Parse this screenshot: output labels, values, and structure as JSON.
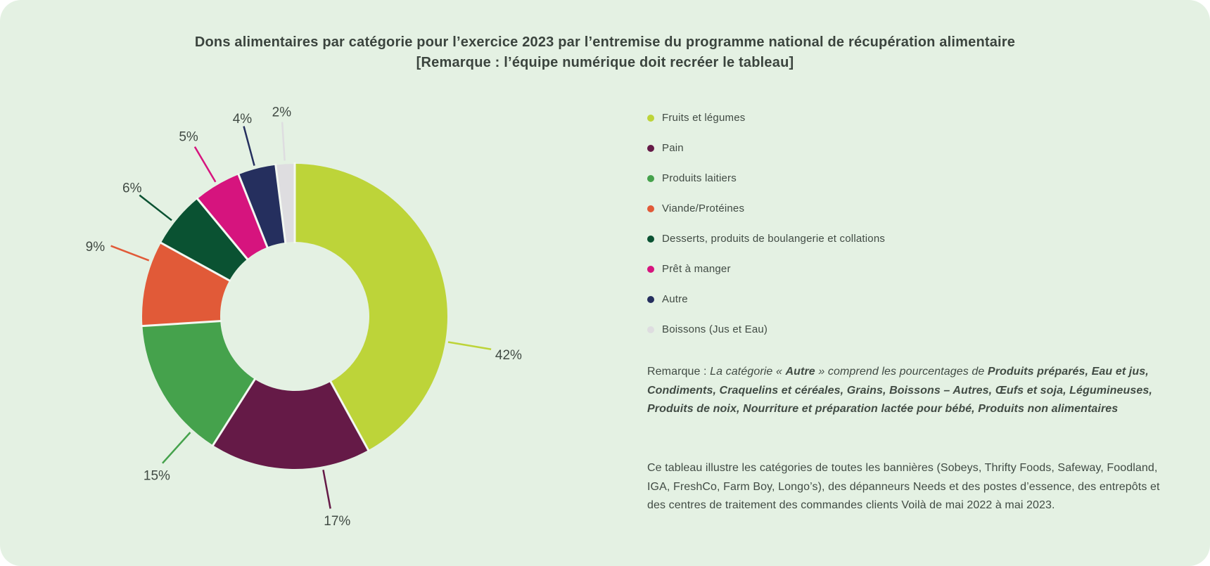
{
  "page": {
    "title_line1": "Dons alimentaires par catégorie pour l’exercice 2023 par l’entremise du programme national de récupération alimentaire",
    "title_line2": "[Remarque : l’équipe numérique doit recréer le tableau]"
  },
  "colors": {
    "background": "#e4f1e3",
    "outside_corner": "#ffffff",
    "text": "#414b44",
    "slice_gap": "#f3f8f1"
  },
  "chart_data": {
    "type": "pie",
    "subtype": "donut",
    "title": "Dons alimentaires par catégorie pour l’exercice 2023 par l’entremise du programme national de récupération alimentaire",
    "subtitle": "[Remarque : l’équipe numérique doit recréer le tableau]",
    "categories": [
      "Fruits et légumes",
      "Pain",
      "Produits laitiers",
      "Viande/Protéines",
      "Desserts, produits de boulangerie et collations",
      "Prêt à manger",
      "Autre",
      "Boissons (Jus et Eau)"
    ],
    "values": [
      42,
      17,
      15,
      9,
      6,
      5,
      4,
      2
    ],
    "labels": [
      "42%",
      "17%",
      "15%",
      "9%",
      "6%",
      "5%",
      "4%",
      "2%"
    ],
    "colors": [
      "#bdd439",
      "#651a47",
      "#45a24c",
      "#e15a38",
      "#0a5232",
      "#d6147e",
      "#252f5e",
      "#dedde0"
    ],
    "start_angle_deg": 0,
    "direction": "clockwise",
    "donut_hole_ratio": 0.49,
    "legend_position": "right",
    "grid": false
  },
  "note": {
    "prefix": "Remarque : ",
    "italic1": "La catégorie « ",
    "bold1": "Autre",
    "italic2": " » comprend les pourcentages de ",
    "bold2": "Produits préparés, Eau et jus, Condiments, Craquelins et céréales, Grains, Boissons – Autres, Œufs et soja, Légumineuses, Produits de noix, Nourriture et préparation lactée pour bébé, Produits non alimentaires"
  },
  "description": {
    "text": "Ce tableau illustre les catégories de toutes les bannières (Sobeys, Thrifty Foods, Safeway, Foodland, IGA, FreshCo, Farm Boy, Longo’s), des dépanneurs Needs et des postes d’essence, des entrepôts et des centres de traitement des commandes clients Voilà de mai 2022 à mai 2023."
  }
}
